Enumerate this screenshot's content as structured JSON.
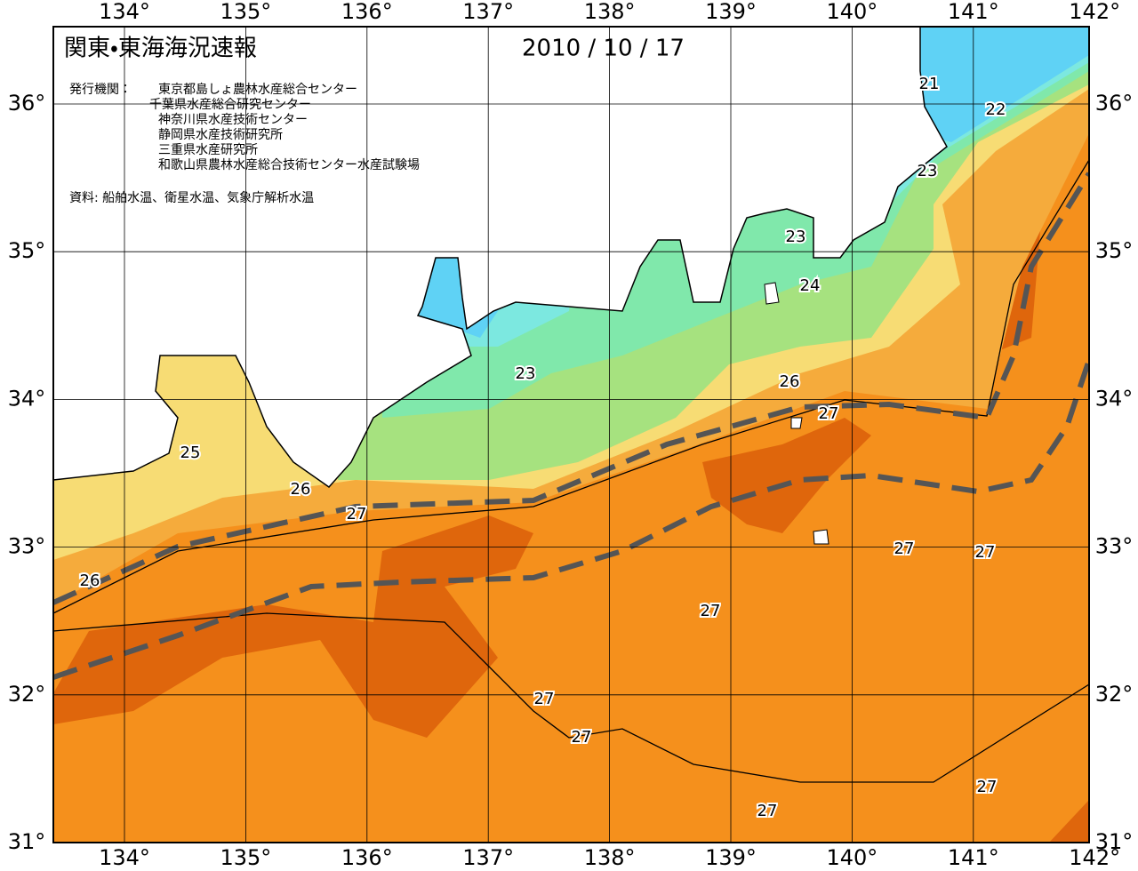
{
  "header": {
    "title": "関東・東海海況速報",
    "date": "2010 / 10 / 17",
    "issuer_label": "発行機関：",
    "issuers": [
      "東京都島しょ農林水産総合センター",
      "千葉県水産総合研究センター",
      "神奈川県水産技術センター",
      "静岡県水産技術研究所",
      "三重県水産研究所",
      "和歌山県農林水産総合技術センター水産試験場"
    ],
    "source": "資料: 船舶水温、衛星水温、気象庁解析水温"
  },
  "map": {
    "longitude_labels": [
      "134°",
      "135°",
      "136°",
      "137°",
      "138°",
      "139°",
      "140°",
      "141°",
      "142°"
    ],
    "latitude_labels": [
      "36°",
      "35°",
      "34°",
      "33°",
      "32°",
      "31°"
    ],
    "contour_labels": [
      "21",
      "22",
      "23",
      "23",
      "24",
      "23",
      "26",
      "27",
      "25",
      "26",
      "27",
      "26",
      "27",
      "27",
      "27",
      "27",
      "27",
      "27",
      "27"
    ]
  }
}
